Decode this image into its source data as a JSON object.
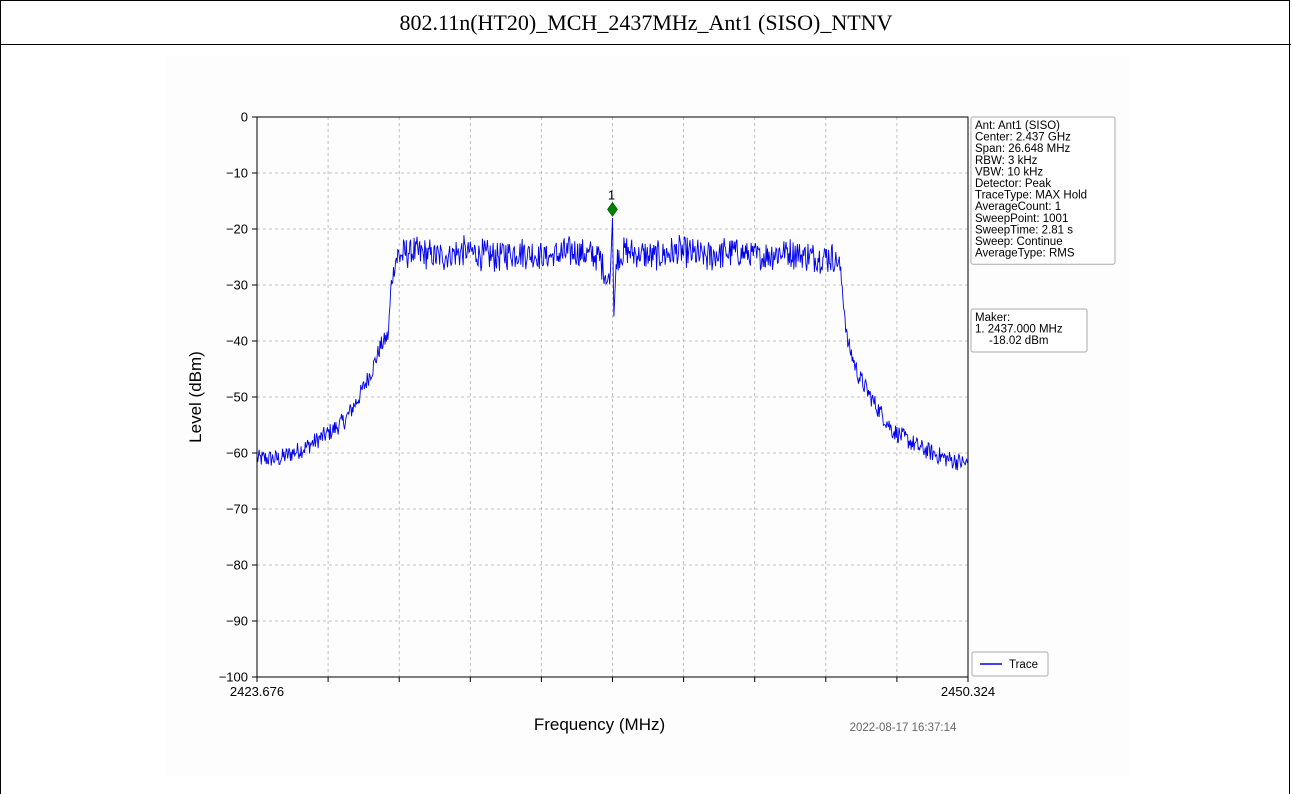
{
  "page_title": "802.11n(HT20)_MCH_2437MHz_Ant1 (SISO)_NTNV",
  "timestamp": "2022-08-17 16:37:14",
  "colors": {
    "trace": "#0000ee",
    "marker": "#008000",
    "grid": "#b0b0b0"
  },
  "chart_data": {
    "type": "line",
    "xlabel": "Frequency (MHz)",
    "ylabel": "Level (dBm)",
    "xlim": [
      2423.676,
      2450.324
    ],
    "ylim": [
      -100,
      0
    ],
    "x_tick_labels": [
      "2423.676",
      "2450.324"
    ],
    "x_gridlines": 10,
    "y_ticks": [
      0,
      -10,
      -20,
      -30,
      -40,
      -50,
      -60,
      -70,
      -80,
      -90,
      -100
    ],
    "grid": true,
    "series": [
      {
        "name": "Trace",
        "x": [
          2423.676,
          2424.5,
          2425.5,
          2426.5,
          2427.0,
          2427.5,
          2428.0,
          2428.3,
          2428.6,
          2428.7,
          2428.9,
          2429.5,
          2430.5,
          2431.5,
          2432.5,
          2433.5,
          2434.5,
          2435.5,
          2436.5,
          2436.9,
          2437.0,
          2437.05,
          2437.15,
          2437.5,
          2438.5,
          2439.5,
          2440.5,
          2441.5,
          2442.5,
          2443.5,
          2444.5,
          2445.2,
          2445.5,
          2445.6,
          2445.8,
          2446.2,
          2446.8,
          2447.5,
          2448.5,
          2449.5,
          2450.324
        ],
        "y": [
          -61,
          -61,
          -59,
          -56,
          -54,
          -50,
          -45,
          -41,
          -39,
          -30,
          -25,
          -24,
          -25,
          -24,
          -25,
          -24,
          -25,
          -24,
          -25,
          -30,
          -18.02,
          -36,
          -25,
          -24,
          -25,
          -24,
          -25,
          -24,
          -25,
          -24,
          -25,
          -25,
          -26,
          -30,
          -40,
          -46,
          -51,
          -56,
          -59,
          -61,
          -62
        ]
      }
    ],
    "legend": {
      "entries": [
        "Trace"
      ],
      "placement": "bottom-right"
    },
    "info_box": [
      "Ant: Ant1 (SISO)",
      "Center: 2.437 GHz",
      "Span: 26.648 MHz",
      "RBW: 3 kHz",
      "VBW: 10 kHz",
      "Detector: Peak",
      "TraceType: MAX Hold",
      "AverageCount: 1",
      "SweepPoint: 1001",
      "SweepTime: 2.81 s",
      "Sweep: Continue",
      "AverageType: RMS"
    ],
    "marker_box": [
      "Maker:",
      "1. 2437.000 MHz",
      "-18.02 dBm"
    ],
    "markers": [
      {
        "label": "1",
        "x": 2437.0,
        "y": -16.5
      }
    ]
  }
}
